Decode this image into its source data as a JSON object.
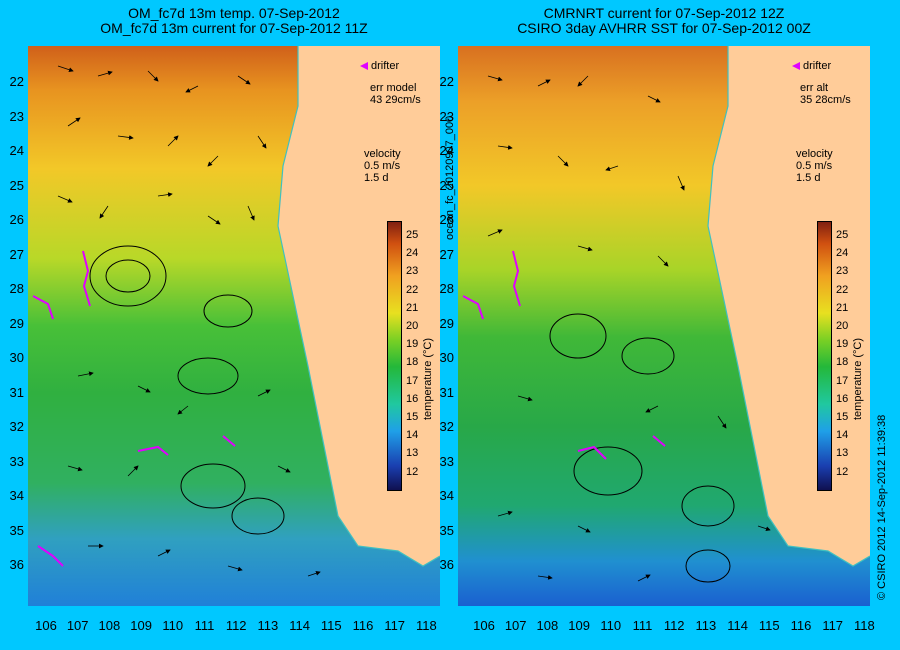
{
  "left_panel": {
    "title_line1": "OM_fc7d 13m temp. 07-Sep-2012",
    "title_line2": "OM_fc7d 13m current for 07-Sep-2012 11Z",
    "err_label": "err model",
    "err_value": "43 29cm/s",
    "velocity_label": "velocity",
    "velocity_scale": "0.5 m/s",
    "velocity_time": "1.5 d",
    "drifter_label": "drifter"
  },
  "right_panel": {
    "title_line1": "CMRNRT current for 07-Sep-2012 12Z",
    "title_line2": "CSIRO 3day AVHRR SST for 07-Sep-2012 00Z",
    "err_label": "err alt",
    "err_value": "35 28cm/s",
    "velocity_label": "velocity",
    "velocity_scale": "0.5 m/s",
    "velocity_time": "1.5 d",
    "drifter_label": "drifter"
  },
  "y_axis_labels": [
    "22",
    "23",
    "24",
    "25",
    "26",
    "27",
    "28",
    "29",
    "30",
    "31",
    "32",
    "33",
    "34",
    "35",
    "36"
  ],
  "x_axis_labels": [
    "106",
    "107",
    "108",
    "109",
    "110",
    "111",
    "112",
    "113",
    "114",
    "115",
    "116",
    "117",
    "118"
  ],
  "colorbar": {
    "ticks": [
      "25",
      "24",
      "23",
      "22",
      "21",
      "20",
      "19",
      "18",
      "17",
      "16",
      "15",
      "14",
      "13",
      "12"
    ],
    "label": "temperature (°C)"
  },
  "side_text_left": "ocean_fc_20120907_000",
  "side_text_right": "© CSIRO 2012   14-Sep-2012 11:39:38",
  "colors": {
    "background": "#00c8ff",
    "land": "#ffcc99",
    "drifter": "#e000ff",
    "coast": "#40c0c0"
  }
}
